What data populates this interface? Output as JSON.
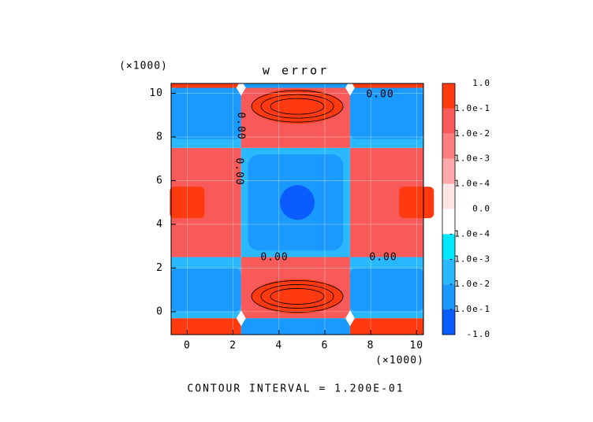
{
  "chart_data": {
    "type": "contour",
    "title": "w error",
    "x_scale_label": "(×1000)",
    "y_scale_label": "(×1000)",
    "xlim": [
      -0.7,
      10.3
    ],
    "ylim": [
      -1.05,
      10.45
    ],
    "xticks": [
      0,
      2,
      4,
      6,
      8,
      10
    ],
    "yticks": [
      0,
      2,
      4,
      6,
      8,
      10
    ],
    "grid": true,
    "colorbar": {
      "labels": [
        "1.0",
        "1.0e-1",
        "1.0e-2",
        "1.0e-3",
        "1.0e-4",
        "0.0",
        "-1.0e-4",
        "-1.0e-3",
        "-1.0e-2",
        "-1.0e-1",
        "-1.0"
      ],
      "colors": [
        "#ff3a10",
        "#f85a5a",
        "#ff7f7f",
        "#ffaaaa",
        "#ffe6e6",
        "#ffffff",
        "#00e8ff",
        "#2ab8ff",
        "#1a9aff",
        "#0a5cff"
      ]
    },
    "contour_labels": [
      "0.00",
      "0.00",
      "0.00",
      "0.00",
      "0.00"
    ],
    "footer": "CONTOUR INTERVAL = 1.200E-01"
  }
}
